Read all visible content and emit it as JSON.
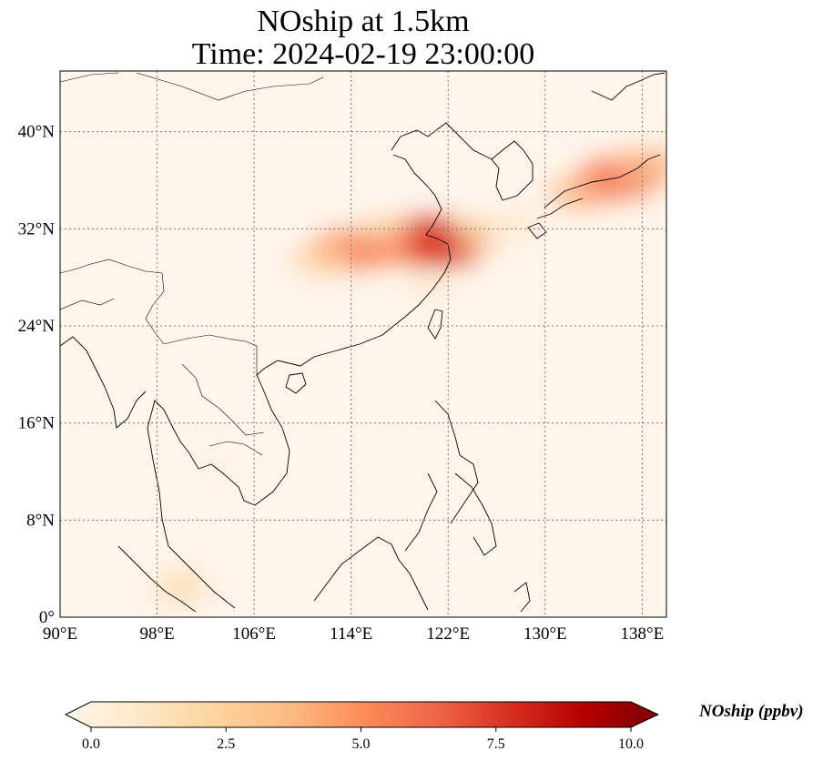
{
  "title": {
    "line1": "NOship at 1.5km",
    "line2": "Time: 2024-02-19 23:00:00"
  },
  "map": {
    "projection": "PlateCarree",
    "lon_range": [
      90,
      140
    ],
    "lat_range": [
      0,
      45
    ],
    "gridlines": "dotted",
    "lon_ticks": [
      {
        "value": 90,
        "label": "90°E"
      },
      {
        "value": 98,
        "label": "98°E"
      },
      {
        "value": 106,
        "label": "106°E"
      },
      {
        "value": 114,
        "label": "114°E"
      },
      {
        "value": 122,
        "label": "122°E"
      },
      {
        "value": 130,
        "label": "130°E"
      },
      {
        "value": 138,
        "label": "138°E"
      }
    ],
    "lat_ticks": [
      {
        "value": 0,
        "label": "0°"
      },
      {
        "value": 8,
        "label": "8°N"
      },
      {
        "value": 16,
        "label": "16°N"
      },
      {
        "value": 24,
        "label": "24°N"
      },
      {
        "value": 32,
        "label": "32°N"
      },
      {
        "value": 40,
        "label": "40°N"
      }
    ],
    "colormap": "OrRd",
    "background_color": "#fff5eb",
    "plumes": [
      {
        "lon": 119.5,
        "lat": 31.0,
        "value": 7.0
      },
      {
        "lon": 121.2,
        "lat": 30.8,
        "value": 7.5
      },
      {
        "lon": 116.5,
        "lat": 30.6,
        "value": 5.0
      },
      {
        "lon": 113.8,
        "lat": 30.2,
        "value": 5.5
      },
      {
        "lon": 111.5,
        "lat": 29.5,
        "value": 3.0
      },
      {
        "lon": 124.5,
        "lat": 31.6,
        "value": 2.5
      },
      {
        "lon": 128.0,
        "lat": 32.5,
        "value": 1.5
      },
      {
        "lon": 116.5,
        "lat": 32.0,
        "value": 2.0
      },
      {
        "lon": 133.0,
        "lat": 35.0,
        "value": 4.0
      },
      {
        "lon": 136.2,
        "lat": 36.2,
        "value": 6.0
      },
      {
        "lon": 138.5,
        "lat": 37.2,
        "value": 4.0
      },
      {
        "lon": 120.5,
        "lat": 27.5,
        "value": 1.5
      },
      {
        "lon": 103.0,
        "lat": 12.5,
        "value": 0.8
      },
      {
        "lon": 100.0,
        "lat": 2.5,
        "value": 2.5
      }
    ]
  },
  "colorbar": {
    "label": "NOship (ppbv)",
    "min": 0.0,
    "max": 10.0,
    "extend": "both",
    "ticks": [
      {
        "value": 0.0,
        "label": "0.0"
      },
      {
        "value": 2.5,
        "label": "2.5"
      },
      {
        "value": 5.0,
        "label": "5.0"
      },
      {
        "value": 7.5,
        "label": "7.5"
      },
      {
        "value": 10.0,
        "label": "10.0"
      }
    ],
    "colors": [
      "#fff7ec",
      "#fee8c8",
      "#fdd49e",
      "#fdbb84",
      "#fc8d59",
      "#ef6548",
      "#d7301f",
      "#b30000",
      "#7f0000"
    ]
  }
}
